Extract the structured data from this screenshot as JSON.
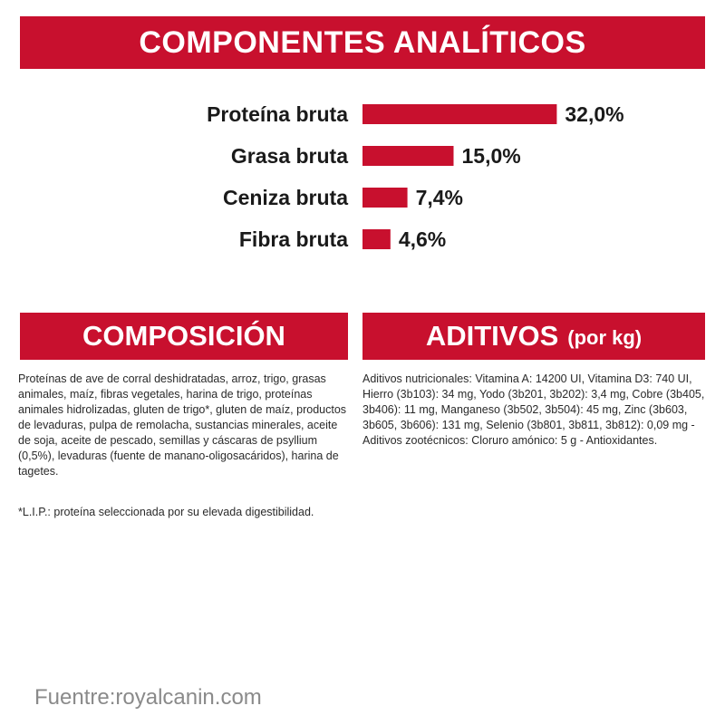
{
  "header": {
    "title": "COMPONENTES ANALÍTICOS"
  },
  "chart_data": {
    "type": "bar",
    "orientation": "horizontal",
    "categories": [
      "Proteína bruta",
      "Grasa bruta",
      "Ceniza bruta",
      "Fibra bruta"
    ],
    "values": [
      32.0,
      15.0,
      7.4,
      4.6
    ],
    "value_labels": [
      "32,0%",
      "15,0%",
      "7,4%",
      "4,6%"
    ],
    "unit": "%",
    "bar_color": "#c8102e",
    "grid": false,
    "legend": "none"
  },
  "composicion": {
    "title": "COMPOSICIÓN",
    "text": "Proteínas de ave de corral deshidratadas, arroz, trigo, grasas animales, maíz, fibras vegetales, harina de trigo, proteínas animales hidrolizadas, gluten de trigo*, gluten de maíz, productos de levaduras, pulpa de remolacha, sustancias minerales, aceite de soja, aceite de pescado, semillas y cáscaras de psyllium (0,5%), levaduras (fuente de manano-oligosacáridos), harina de tagetes.",
    "note": "*L.I.P.: proteína seleccionada por su elevada digestibilidad."
  },
  "aditivos": {
    "title": "ADITIVOS",
    "subtitle": "(por kg)",
    "text": "Aditivos nutricionales: Vitamina A: 14200 UI, Vitamina D3: 740 UI, Hierro (3b103): 34 mg, Yodo (3b201, 3b202): 3,4 mg, Cobre (3b405, 3b406): 11 mg, Manganeso (3b502, 3b504): 45 mg, Zinc (3b603, 3b605, 3b606): 131 mg, Selenio (3b801, 3b811, 3b812): 0,09 mg - Aditivos zootécnicos: Cloruro amónico: 5 g - Antioxidantes."
  },
  "footer": {
    "source": "Fuentre:royalcanin.com"
  },
  "colors": {
    "accent": "#c8102e",
    "text": "#1a1a1a",
    "muted": "#8a8a8a"
  }
}
